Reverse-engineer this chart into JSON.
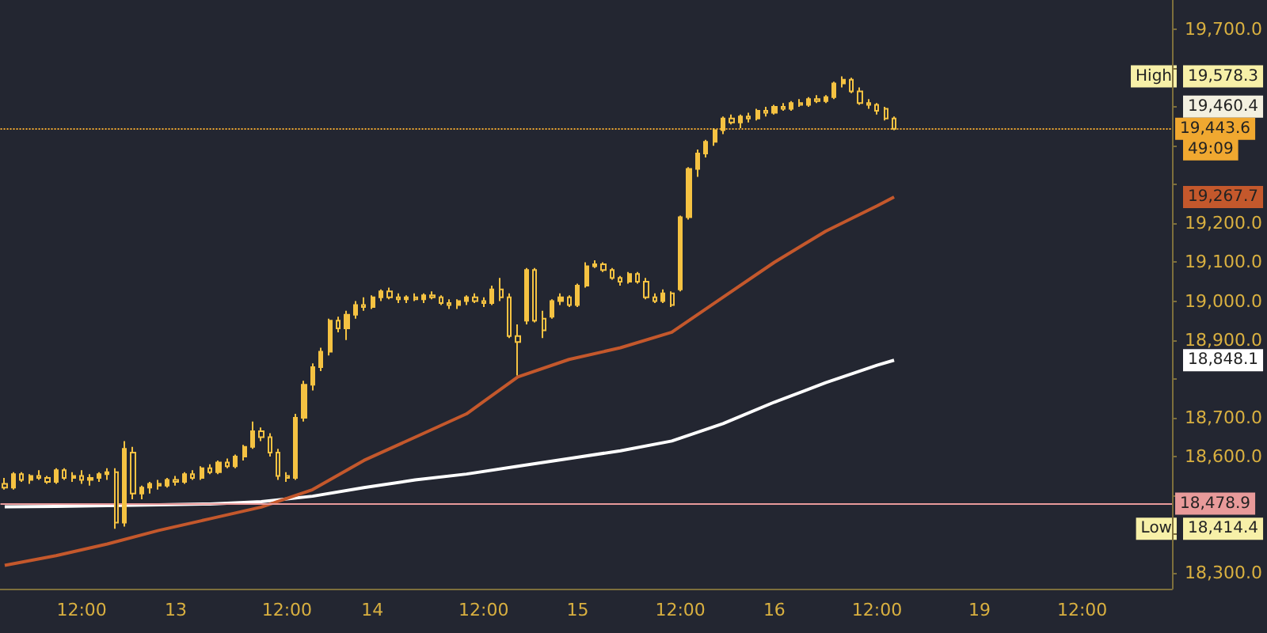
{
  "chart_data": {
    "type": "candlestick",
    "categories": [
      null,
      null,
      null,
      null,
      null,
      null,
      null,
      null,
      null,
      "12:00",
      null,
      null,
      null,
      null,
      null,
      null,
      null,
      null,
      null,
      null,
      "13",
      null,
      null,
      null,
      null,
      null,
      null,
      null,
      null,
      null,
      null,
      null,
      null,
      "12:00",
      null,
      null,
      null,
      null,
      null,
      null,
      null,
      null,
      null,
      "14",
      null,
      null,
      null,
      null,
      null,
      null,
      null,
      null,
      null,
      null,
      null,
      null,
      "12:00",
      null,
      null,
      null,
      null,
      null,
      null,
      null,
      null,
      null,
      null,
      "15",
      null,
      null,
      null,
      null,
      null,
      null,
      null,
      null,
      null,
      null,
      null,
      "12:00",
      null,
      null,
      null,
      null,
      null,
      null,
      null,
      null,
      null,
      null,
      "16",
      null,
      null,
      null,
      null,
      null,
      null,
      null,
      null,
      null,
      null,
      null,
      "12:00",
      null,
      null,
      null,
      null,
      null,
      null,
      null,
      null,
      null,
      null,
      null,
      "19",
      null,
      null,
      null,
      null,
      null,
      null,
      null,
      null,
      null,
      null,
      null,
      "12:00",
      null,
      null,
      null,
      null,
      null,
      null,
      null,
      null,
      null,
      null
    ],
    "series": [
      {
        "type": "candlestick",
        "color": "#f5c242",
        "ohlc": [
          [
            18530,
            18545,
            18515,
            18520
          ],
          [
            18520,
            18560,
            18515,
            18555
          ],
          [
            18555,
            18560,
            18535,
            18540
          ],
          [
            18540,
            18555,
            18530,
            18550
          ],
          [
            18550,
            18565,
            18540,
            18545
          ],
          [
            18545,
            18550,
            18530,
            18535
          ],
          [
            18535,
            18570,
            18530,
            18565
          ],
          [
            18565,
            18570,
            18540,
            18545
          ],
          [
            18545,
            18560,
            18535,
            18550
          ],
          [
            18550,
            18565,
            18530,
            18540
          ],
          [
            18540,
            18555,
            18525,
            18545
          ],
          [
            18545,
            18560,
            18535,
            18555
          ],
          [
            18555,
            18570,
            18540,
            18560
          ],
          [
            18560,
            18570,
            18414.4,
            18430
          ],
          [
            18430,
            18640,
            18420,
            18620
          ],
          [
            18610,
            18625,
            18490,
            18505
          ],
          [
            18505,
            18525,
            18490,
            18520
          ],
          [
            18520,
            18535,
            18505,
            18530
          ],
          [
            18530,
            18540,
            18515,
            18525
          ],
          [
            18525,
            18545,
            18520,
            18540
          ],
          [
            18540,
            18550,
            18525,
            18535
          ],
          [
            18535,
            18560,
            18530,
            18555
          ],
          [
            18555,
            18565,
            18540,
            18545
          ],
          [
            18545,
            18575,
            18540,
            18570
          ],
          [
            18570,
            18580,
            18555,
            18560
          ],
          [
            18560,
            18590,
            18555,
            18585
          ],
          [
            18585,
            18595,
            18570,
            18575
          ],
          [
            18575,
            18605,
            18570,
            18600
          ],
          [
            18600,
            18630,
            18590,
            18625
          ],
          [
            18625,
            18690,
            18620,
            18665
          ],
          [
            18665,
            18675,
            18640,
            18650
          ],
          [
            18650,
            18660,
            18600,
            18610
          ],
          [
            18610,
            18620,
            18540,
            18550
          ],
          [
            18550,
            18560,
            18535,
            18545
          ],
          [
            18545,
            18710,
            18540,
            18700
          ],
          [
            18700,
            18795,
            18690,
            18785
          ],
          [
            18785,
            18840,
            18770,
            18830
          ],
          [
            18830,
            18880,
            18820,
            18870
          ],
          [
            18870,
            18955,
            18860,
            18950
          ],
          [
            18950,
            18960,
            18920,
            18930
          ],
          [
            18930,
            18975,
            18900,
            18965
          ],
          [
            18965,
            19000,
            18955,
            18990
          ],
          [
            18990,
            19010,
            18975,
            18985
          ],
          [
            18985,
            19015,
            18980,
            19010
          ],
          [
            19010,
            19030,
            19000,
            19025
          ],
          [
            19025,
            19035,
            19005,
            19010
          ],
          [
            19010,
            19020,
            18995,
            19005
          ],
          [
            19005,
            19015,
            18995,
            19010
          ],
          [
            19010,
            19020,
            19000,
            19005
          ],
          [
            19005,
            19020,
            18995,
            19015
          ],
          [
            19015,
            19025,
            19005,
            19010
          ],
          [
            19010,
            19015,
            18990,
            18995
          ],
          [
            18995,
            19005,
            18980,
            18990
          ],
          [
            18990,
            19005,
            18980,
            19000
          ],
          [
            19000,
            19015,
            18990,
            19010
          ],
          [
            19010,
            19020,
            18995,
            19000
          ],
          [
            19000,
            19010,
            18985,
            18995
          ],
          [
            18995,
            19040,
            18990,
            19030
          ],
          [
            19030,
            19060,
            19000,
            19010
          ],
          [
            19010,
            19020,
            18905,
            18910
          ],
          [
            18910,
            18940,
            18809,
            18895
          ],
          [
            18950,
            19085,
            18940,
            19080
          ],
          [
            19080,
            19085,
            18945,
            18950
          ],
          [
            18955,
            18975,
            18905,
            18925
          ],
          [
            18960,
            19005,
            18955,
            19000
          ],
          [
            19000,
            19020,
            18990,
            19010
          ],
          [
            19010,
            19015,
            18985,
            18990
          ],
          [
            18990,
            19045,
            18985,
            19040
          ],
          [
            19040,
            19100,
            19035,
            19090
          ],
          [
            19090,
            19105,
            19085,
            19095
          ],
          [
            19095,
            19100,
            19075,
            19080
          ],
          [
            19080,
            19085,
            19055,
            19060
          ],
          [
            19060,
            19065,
            19040,
            19050
          ],
          [
            19050,
            19075,
            19045,
            19070
          ],
          [
            19070,
            19075,
            19045,
            19050
          ],
          [
            19050,
            19060,
            19005,
            19010
          ],
          [
            19010,
            19020,
            18995,
            19000
          ],
          [
            19000,
            19030,
            18995,
            19020
          ],
          [
            19020,
            19025,
            18985,
            18990
          ],
          [
            19030,
            19220,
            19025,
            19216
          ],
          [
            19216,
            19345,
            19210,
            19340
          ],
          [
            19340,
            19390,
            19320,
            19380
          ],
          [
            19380,
            19415,
            19370,
            19410
          ],
          [
            19410,
            19445,
            19400,
            19440
          ],
          [
            19440,
            19475,
            19430,
            19470
          ],
          [
            19470,
            19480,
            19455,
            19460
          ],
          [
            19460,
            19480,
            19445,
            19475
          ],
          [
            19475,
            19485,
            19460,
            19470
          ],
          [
            19470,
            19495,
            19465,
            19490
          ],
          [
            19490,
            19500,
            19475,
            19485
          ],
          [
            19485,
            19505,
            19480,
            19500
          ],
          [
            19500,
            19510,
            19490,
            19495
          ],
          [
            19495,
            19515,
            19490,
            19510
          ],
          [
            19510,
            19520,
            19500,
            19505
          ],
          [
            19505,
            19525,
            19500,
            19520
          ],
          [
            19520,
            19530,
            19510,
            19515
          ],
          [
            19515,
            19530,
            19510,
            19525
          ],
          [
            19525,
            19565,
            19520,
            19560
          ],
          [
            19560,
            19578.3,
            19550,
            19570
          ],
          [
            19570,
            19575,
            19535,
            19540
          ],
          [
            19540,
            19550,
            19505,
            19510
          ],
          [
            19510,
            19520,
            19495,
            19505
          ],
          [
            19505,
            19510,
            19480,
            19490
          ],
          [
            19495,
            19500,
            19465,
            19470
          ],
          [
            19470,
            19475,
            19440,
            19443.6
          ],
          null,
          null,
          null,
          null,
          null,
          null,
          null,
          null,
          null,
          null,
          null,
          null,
          null,
          null,
          null,
          null,
          null,
          null,
          null,
          null,
          null,
          null,
          null,
          null,
          null,
          null,
          null,
          null,
          null,
          null,
          null,
          null
        ]
      },
      {
        "type": "line",
        "color": "#ffffff",
        "values": [
          18471,
          null,
          null,
          null,
          null,
          null,
          18472,
          null,
          null,
          null,
          null,
          null,
          18474,
          null,
          null,
          null,
          null,
          null,
          18476,
          null,
          null,
          null,
          null,
          null,
          18478,
          null,
          null,
          null,
          null,
          null,
          18484,
          null,
          null,
          null,
          null,
          null,
          18498,
          null,
          null,
          null,
          null,
          null,
          18520,
          null,
          null,
          null,
          null,
          null,
          18540,
          null,
          null,
          null,
          null,
          null,
          18555,
          null,
          null,
          null,
          null,
          null,
          18575,
          null,
          null,
          null,
          null,
          null,
          18595,
          null,
          null,
          null,
          null,
          null,
          18615,
          null,
          null,
          null,
          null,
          null,
          18640,
          null,
          null,
          null,
          null,
          null,
          18685,
          null,
          null,
          null,
          null,
          null,
          18740,
          null,
          null,
          null,
          null,
          null,
          18790,
          null,
          null,
          null,
          null,
          null,
          18835,
          null,
          18848,
          null,
          null,
          null,
          null,
          null,
          null,
          null,
          null,
          null,
          null,
          null,
          null,
          null,
          null,
          null,
          null,
          null,
          null,
          null,
          null,
          null,
          null,
          null,
          null,
          null,
          null,
          null,
          null,
          null,
          null,
          null,
          null
        ]
      },
      {
        "type": "line",
        "color": "#c4582c",
        "values": [
          18320,
          null,
          null,
          null,
          null,
          null,
          18345,
          null,
          null,
          null,
          null,
          null,
          18375,
          null,
          null,
          null,
          null,
          null,
          18410,
          null,
          null,
          null,
          null,
          null,
          18440,
          null,
          null,
          null,
          null,
          null,
          18470,
          null,
          null,
          null,
          null,
          null,
          18515,
          null,
          null,
          null,
          null,
          null,
          18590,
          null,
          null,
          null,
          null,
          null,
          18650,
          null,
          null,
          null,
          null,
          null,
          18710,
          null,
          null,
          null,
          null,
          null,
          18805,
          null,
          null,
          null,
          null,
          null,
          18850,
          null,
          null,
          null,
          null,
          null,
          18880,
          null,
          null,
          null,
          null,
          null,
          18920,
          null,
          null,
          null,
          null,
          null,
          19010,
          null,
          null,
          null,
          null,
          null,
          19100,
          null,
          null,
          null,
          null,
          null,
          19180,
          null,
          null,
          null,
          null,
          null,
          19245,
          null,
          19268,
          null,
          null,
          null,
          null,
          null,
          null,
          null,
          null,
          null,
          null,
          null,
          null,
          null,
          null,
          null,
          null,
          null,
          null,
          null,
          null,
          null,
          null,
          null,
          null,
          null,
          null,
          null,
          null,
          null,
          null,
          null,
          null
        ]
      }
    ],
    "ylim": [
      18260,
      19775
    ],
    "yticks": [
      {
        "value": 18300,
        "label": "18,300.0"
      },
      {
        "value": 18400,
        "label": null
      },
      {
        "value": 18500,
        "label": null
      },
      {
        "value": 18600,
        "label": "18,600.0"
      },
      {
        "value": 18700,
        "label": "18,700.0"
      },
      {
        "value": 18800,
        "label": null
      },
      {
        "value": 18900,
        "label": "18,900.0"
      },
      {
        "value": 19000,
        "label": "19,000.0"
      },
      {
        "value": 19100,
        "label": "19,100.0"
      },
      {
        "value": 19200,
        "label": "19,200.0"
      },
      {
        "value": 19300,
        "label": null
      },
      {
        "value": 19400,
        "label": null
      },
      {
        "value": 19500,
        "label": null
      },
      {
        "value": 19600,
        "label": null
      },
      {
        "value": 19700,
        "label": "19,700.0"
      }
    ],
    "ref_lines": [
      {
        "axis": "y",
        "value": 19443.6,
        "label": "19,443.6",
        "color": "#f0a830",
        "line_style": "dotted"
      },
      {
        "axis": "y",
        "value": 18478.9,
        "label": "18,478.9",
        "color": "#e89a9a",
        "line_style": "solid"
      }
    ],
    "annotations": [
      "High",
      "19,578.3",
      "19,460.4",
      "49:09",
      "Low",
      "18,414.4",
      "19,267.7",
      "18,848.1"
    ],
    "grid": false,
    "marker": "none"
  }
}
